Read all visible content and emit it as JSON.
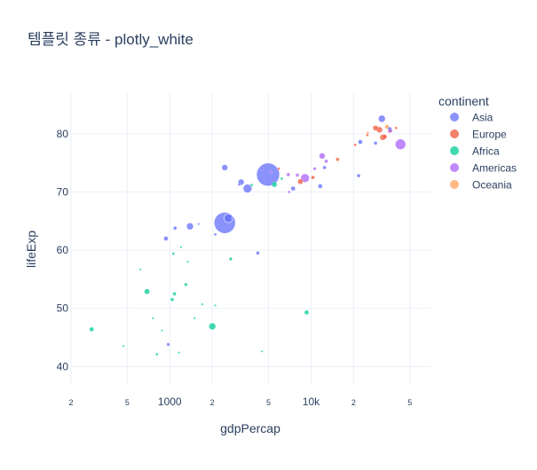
{
  "chart_data": {
    "type": "scatter",
    "title": "템플릿 종류 - plotly_white",
    "xlabel": "gdpPercap",
    "ylabel": "lifeExp",
    "xscale": "log",
    "xlim": [
      200,
      70000
    ],
    "ylim": [
      37,
      87
    ],
    "grid": true,
    "legend": {
      "title": "continent",
      "placement": "right"
    },
    "x_ticks": [
      {
        "value": 200,
        "label": "2"
      },
      {
        "value": 500,
        "label": "5"
      },
      {
        "value": 1000,
        "label": "1000"
      },
      {
        "value": 2000,
        "label": "2"
      },
      {
        "value": 5000,
        "label": "5"
      },
      {
        "value": 10000,
        "label": "10k"
      },
      {
        "value": 20000,
        "label": "2"
      },
      {
        "value": 50000,
        "label": "5"
      }
    ],
    "y_ticks": [
      {
        "value": 40,
        "label": "40"
      },
      {
        "value": 50,
        "label": "50"
      },
      {
        "value": 60,
        "label": "60"
      },
      {
        "value": 70,
        "label": "70"
      },
      {
        "value": 80,
        "label": "80"
      }
    ],
    "series": [
      {
        "name": "Asia",
        "color": "#636efa",
        "points": [
          {
            "x": 4960,
            "y": 73.0,
            "size": 13
          },
          {
            "x": 2450,
            "y": 64.7,
            "size": 12
          },
          {
            "x": 2600,
            "y": 65.5,
            "size": 5
          },
          {
            "x": 31700,
            "y": 82.6,
            "size": 4
          },
          {
            "x": 3550,
            "y": 70.6,
            "size": 5
          },
          {
            "x": 3200,
            "y": 71.7,
            "size": 3.5
          },
          {
            "x": 1390,
            "y": 64.1,
            "size": 4
          },
          {
            "x": 2450,
            "y": 74.2,
            "size": 3.5
          },
          {
            "x": 940,
            "y": 62.0,
            "size": 2.5
          },
          {
            "x": 1090,
            "y": 63.8,
            "size": 2
          },
          {
            "x": 4200,
            "y": 59.5,
            "size": 2
          },
          {
            "x": 11600,
            "y": 71.0,
            "size": 2.5
          },
          {
            "x": 7460,
            "y": 70.6,
            "size": 2.5
          },
          {
            "x": 22300,
            "y": 78.6,
            "size": 2.5
          },
          {
            "x": 28600,
            "y": 78.4,
            "size": 2
          },
          {
            "x": 12450,
            "y": 74.2,
            "size": 2
          },
          {
            "x": 21700,
            "y": 72.8,
            "size": 2
          },
          {
            "x": 36000,
            "y": 80.9,
            "size": 2
          },
          {
            "x": 2100,
            "y": 62.7,
            "size": 1.5
          },
          {
            "x": 3100,
            "y": 71.3,
            "size": 1.5
          },
          {
            "x": 4500,
            "y": 74.0,
            "size": 1.5
          },
          {
            "x": 975,
            "y": 43.8,
            "size": 1.8
          },
          {
            "x": 1600,
            "y": 64.5,
            "size": 1.2
          },
          {
            "x": 2750,
            "y": 65.5,
            "size": 1.2
          }
        ]
      },
      {
        "name": "Europe",
        "color": "#ef553b",
        "points": [
          {
            "x": 32200,
            "y": 79.4,
            "size": 3.5
          },
          {
            "x": 30500,
            "y": 80.7,
            "size": 3.5
          },
          {
            "x": 28600,
            "y": 81.0,
            "size": 3
          },
          {
            "x": 33200,
            "y": 79.5,
            "size": 2.5
          },
          {
            "x": 36100,
            "y": 80.5,
            "size": 2.5
          },
          {
            "x": 15400,
            "y": 75.6,
            "size": 2
          },
          {
            "x": 8400,
            "y": 71.8,
            "size": 3
          },
          {
            "x": 10300,
            "y": 72.5,
            "size": 2
          },
          {
            "x": 5900,
            "y": 74.0,
            "size": 1.5
          },
          {
            "x": 20500,
            "y": 78.1,
            "size": 1.5
          },
          {
            "x": 25000,
            "y": 79.8,
            "size": 1.5
          },
          {
            "x": 40000,
            "y": 81.0,
            "size": 1.5
          }
        ]
      },
      {
        "name": "Africa",
        "color": "#00cc96",
        "points": [
          {
            "x": 2000,
            "y": 46.9,
            "size": 4
          },
          {
            "x": 690,
            "y": 52.9,
            "size": 3
          },
          {
            "x": 280,
            "y": 46.4,
            "size": 2.5
          },
          {
            "x": 9300,
            "y": 49.3,
            "size": 2.5
          },
          {
            "x": 5500,
            "y": 71.3,
            "size": 3
          },
          {
            "x": 1040,
            "y": 51.5,
            "size": 2
          },
          {
            "x": 1080,
            "y": 52.5,
            "size": 2
          },
          {
            "x": 1300,
            "y": 54.1,
            "size": 1.8
          },
          {
            "x": 2700,
            "y": 58.5,
            "size": 1.8
          },
          {
            "x": 1060,
            "y": 59.4,
            "size": 1.5
          },
          {
            "x": 810,
            "y": 42.1,
            "size": 1.5
          },
          {
            "x": 1160,
            "y": 42.4,
            "size": 1.2
          },
          {
            "x": 4500,
            "y": 42.6,
            "size": 1.2
          },
          {
            "x": 620,
            "y": 56.7,
            "size": 1.2
          },
          {
            "x": 1340,
            "y": 58.0,
            "size": 1.2
          },
          {
            "x": 1700,
            "y": 50.7,
            "size": 1.2
          },
          {
            "x": 1500,
            "y": 48.3,
            "size": 1.2
          },
          {
            "x": 760,
            "y": 48.3,
            "size": 1.2
          },
          {
            "x": 470,
            "y": 43.5,
            "size": 1.2
          },
          {
            "x": 3800,
            "y": 71.2,
            "size": 1.5
          },
          {
            "x": 6200,
            "y": 72.3,
            "size": 1.5
          },
          {
            "x": 1200,
            "y": 60.5,
            "size": 1.2
          },
          {
            "x": 2100,
            "y": 50.5,
            "size": 1.2
          },
          {
            "x": 880,
            "y": 46.2,
            "size": 1.2
          }
        ]
      },
      {
        "name": "Americas",
        "color": "#ab63fa",
        "points": [
          {
            "x": 42950,
            "y": 78.2,
            "size": 6
          },
          {
            "x": 9060,
            "y": 72.4,
            "size": 5
          },
          {
            "x": 11980,
            "y": 76.2,
            "size": 3.5
          },
          {
            "x": 36300,
            "y": 80.6,
            "size": 2.5
          },
          {
            "x": 6900,
            "y": 73.0,
            "size": 2
          },
          {
            "x": 12800,
            "y": 75.3,
            "size": 2
          },
          {
            "x": 8000,
            "y": 72.9,
            "size": 2
          },
          {
            "x": 10600,
            "y": 74.0,
            "size": 1.8
          },
          {
            "x": 7000,
            "y": 70.0,
            "size": 1.5
          },
          {
            "x": 5200,
            "y": 73.5,
            "size": 1.5
          }
        ]
      },
      {
        "name": "Oceania",
        "color": "#ffa15a",
        "points": [
          {
            "x": 34400,
            "y": 81.2,
            "size": 2.5
          },
          {
            "x": 25200,
            "y": 80.2,
            "size": 1.5
          }
        ]
      }
    ]
  }
}
